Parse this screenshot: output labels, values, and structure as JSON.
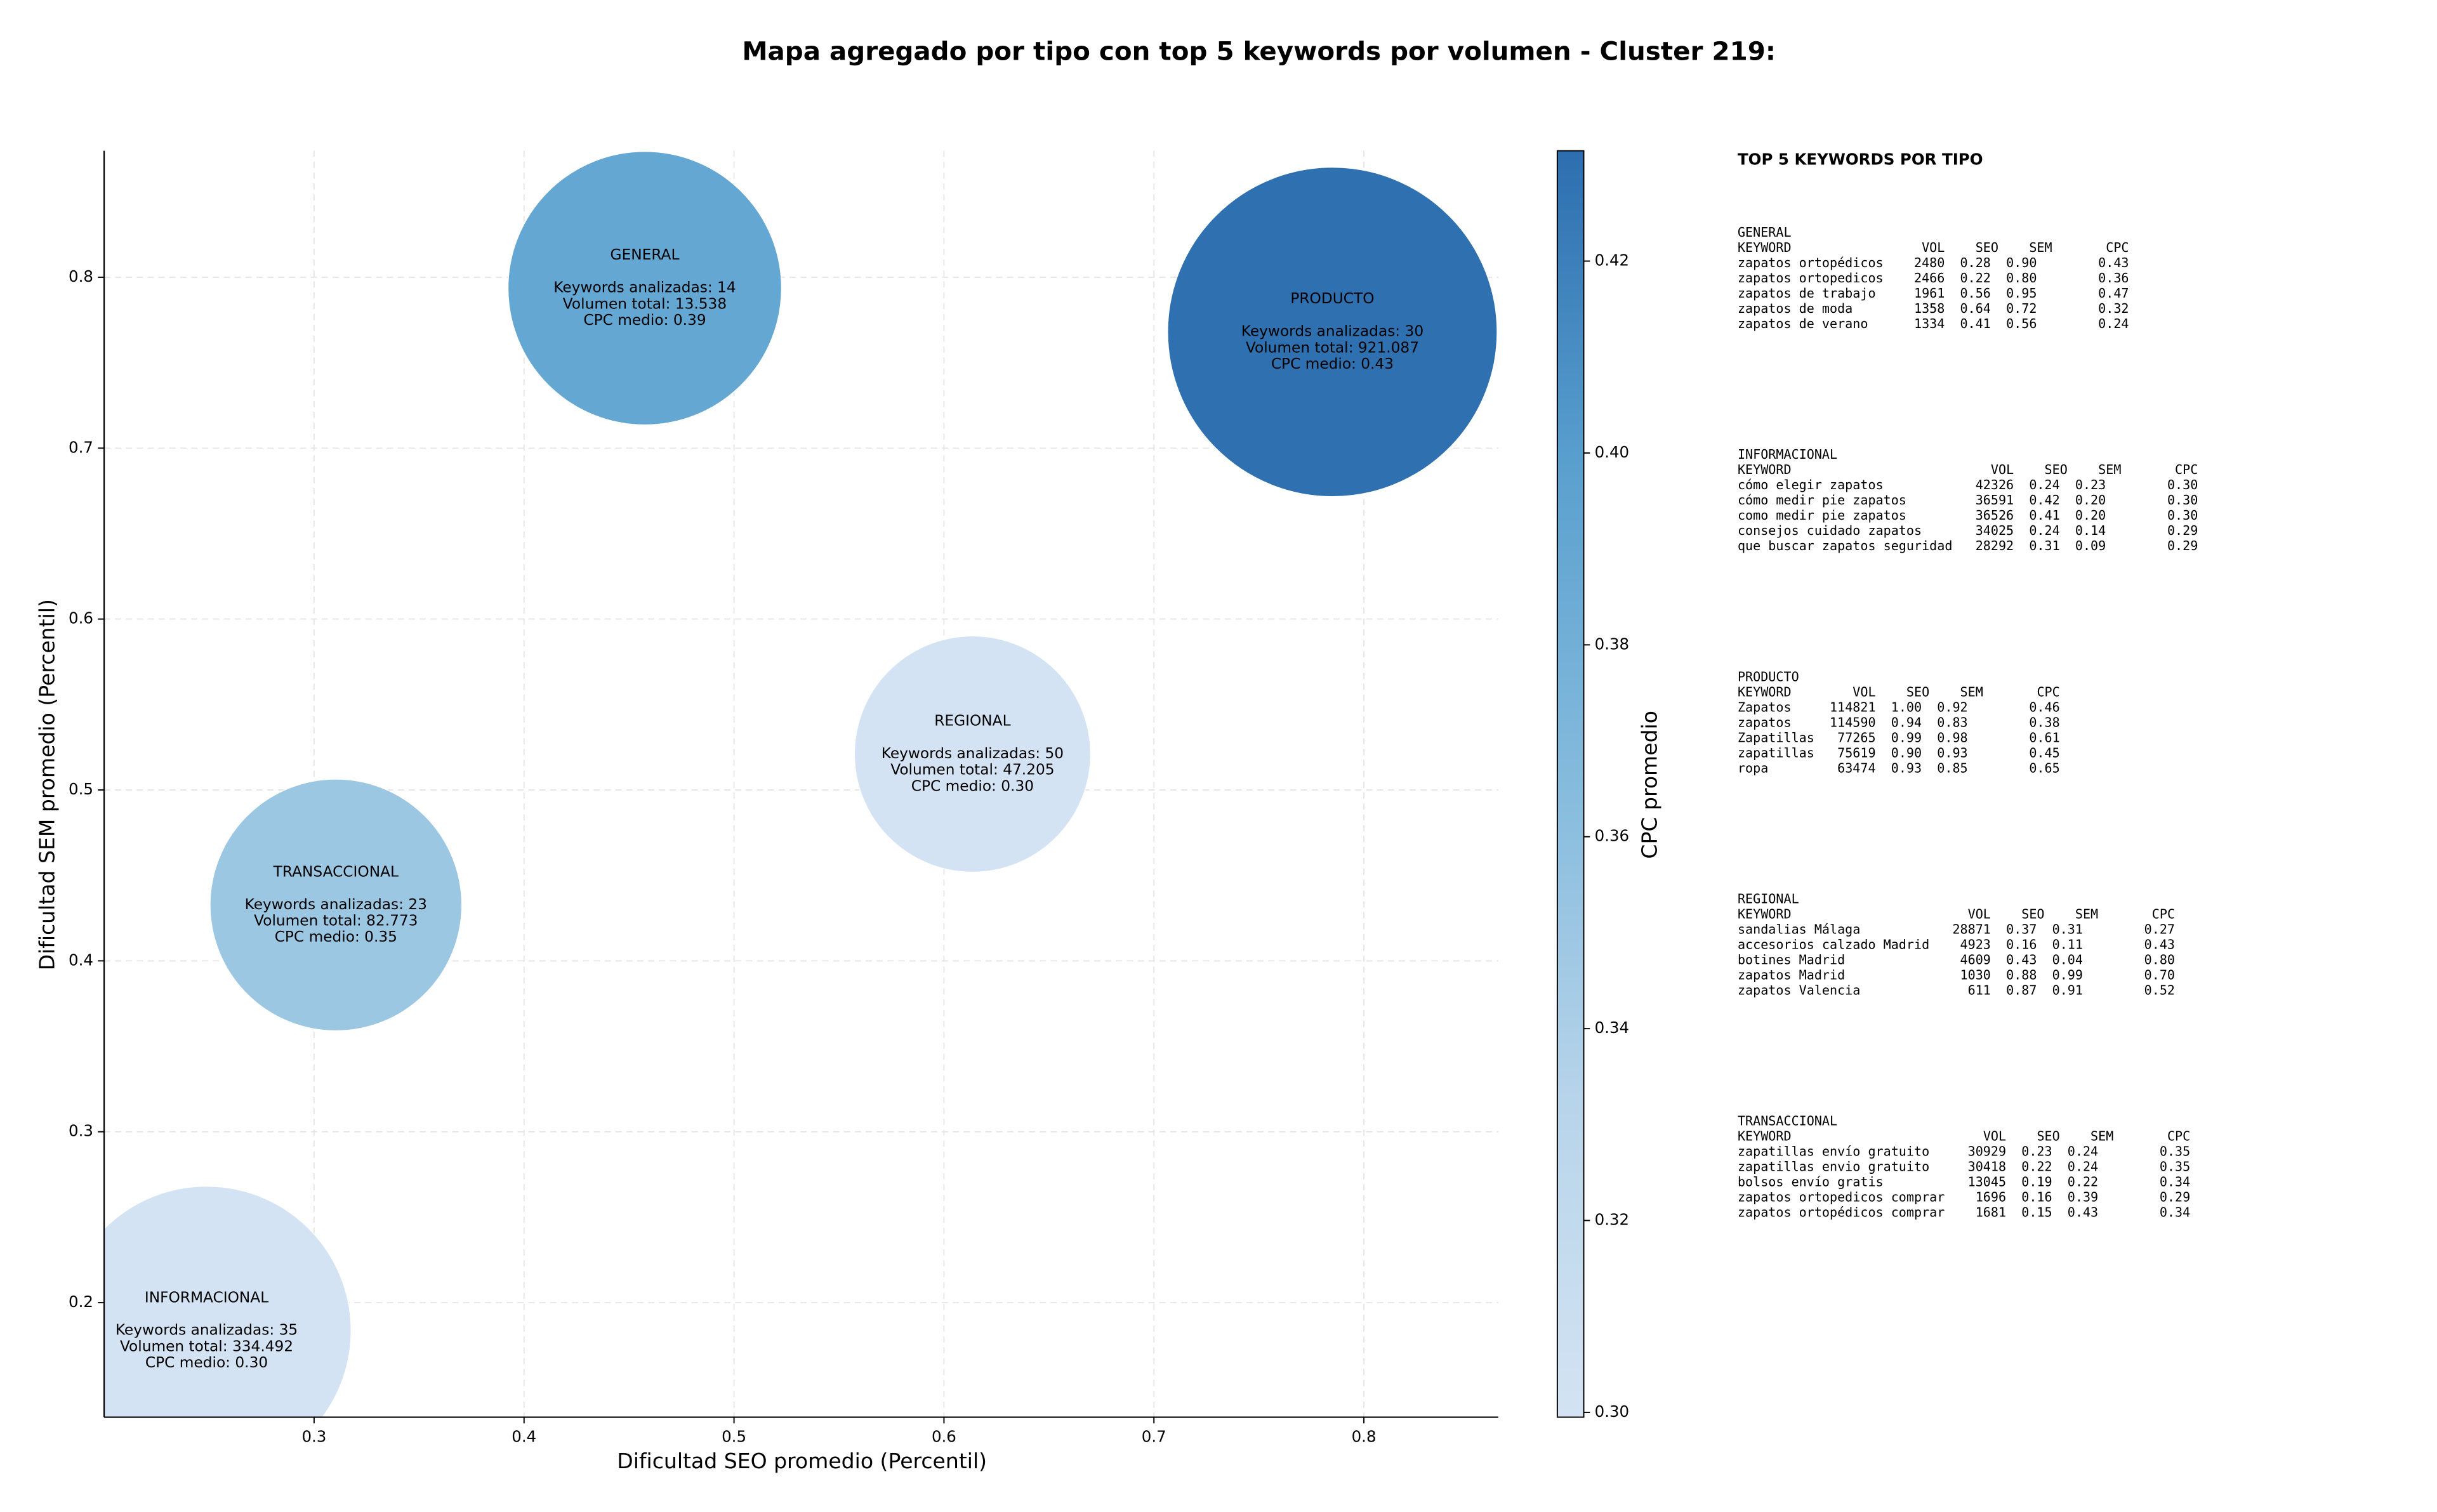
{
  "chart_data": {
    "type": "bubble",
    "title": "Mapa agregado por tipo con top 5 keywords por volumen - Cluster 219:",
    "x_label": "Dificultad SEO promedio (Percentil)",
    "y_label": "Dificultad SEM promedio (Percentil)",
    "colorbar_label": "CPC promedio",
    "xlim": [
      0.2,
      0.864
    ],
    "ylim": [
      0.133,
      0.874
    ],
    "xticks": [
      0.3,
      0.4,
      0.5,
      0.6,
      0.7,
      0.8
    ],
    "yticks": [
      0.2,
      0.3,
      0.4,
      0.5,
      0.6,
      0.7,
      0.8
    ],
    "clim": [
      0.2995,
      0.4315
    ],
    "cticks": [
      {
        "value": 0.3,
        "label": "0.30"
      },
      {
        "value": 0.32,
        "label": "0.32"
      },
      {
        "value": 0.34,
        "label": "0.34"
      },
      {
        "value": 0.36,
        "label": "0.36"
      },
      {
        "value": 0.38,
        "label": "0.38"
      },
      {
        "value": 0.4,
        "label": "0.40"
      },
      {
        "value": 0.42,
        "label": "0.42"
      }
    ],
    "colormap": [
      "#d3e3f3",
      "#b7d4ea",
      "#85bbdd",
      "#5aa0cf",
      "#2c6eaf"
    ],
    "grid": true,
    "points": [
      {
        "name": "GENERAL",
        "x": 0.4575,
        "y": 0.7936,
        "size": 7744,
        "cpc": 0.39,
        "lines": [
          "Keywords analizadas: 14",
          "Volumen total: 13.538",
          "CPC medio: 0.39"
        ]
      },
      {
        "name": "PRODUCTO",
        "x": 0.785,
        "y": 0.768,
        "size": 11236,
        "cpc": 0.43,
        "lines": [
          "Keywords analizadas: 30",
          "Volumen total: 921.087",
          "CPC medio: 0.43"
        ]
      },
      {
        "name": "REGIONAL",
        "x": 0.6136,
        "y": 0.521,
        "size": 5776,
        "cpc": 0.3,
        "lines": [
          "Keywords analizadas: 50",
          "Volumen total: 47.205",
          "CPC medio: 0.30"
        ]
      },
      {
        "name": "TRANSACCIONAL",
        "x": 0.3104,
        "y": 0.4327,
        "size": 6561,
        "cpc": 0.35,
        "lines": [
          "Keywords analizadas: 23",
          "Volumen total: 82.773",
          "CPC medio: 0.35"
        ]
      },
      {
        "name": "INFORMACIONAL",
        "x": 0.2488,
        "y": 0.1836,
        "size": 8649,
        "cpc": 0.3,
        "lines": [
          "Keywords analizadas: 35",
          "Volumen total: 334.492",
          "CPC medio: 0.30"
        ]
      }
    ]
  },
  "panel": {
    "title": "TOP 5 KEYWORDS POR TIPO",
    "blocks": [
      {
        "name": "GENERAL",
        "header": [
          "KEYWORD",
          "VOL",
          "SEO",
          "SEM",
          "CPC"
        ],
        "rows": [
          [
            "zapatos ortopédicos",
            "2480",
            "0.28",
            "0.90",
            "0.43"
          ],
          [
            "zapatos ortopedicos",
            "2466",
            "0.22",
            "0.80",
            "0.36"
          ],
          [
            "zapatos de trabajo",
            "1961",
            "0.56",
            "0.95",
            "0.47"
          ],
          [
            "zapatos de moda",
            "1358",
            "0.64",
            "0.72",
            "0.32"
          ],
          [
            "zapatos de verano",
            "1334",
            "0.41",
            "0.56",
            "0.24"
          ]
        ]
      },
      {
        "name": "INFORMACIONAL",
        "header": [
          "KEYWORD",
          "VOL",
          "SEO",
          "SEM",
          "CPC"
        ],
        "rows": [
          [
            "cómo elegir zapatos",
            "42326",
            "0.24",
            "0.23",
            "0.30"
          ],
          [
            "cómo medir pie zapatos",
            "36591",
            "0.42",
            "0.20",
            "0.30"
          ],
          [
            "como medir pie zapatos",
            "36526",
            "0.41",
            "0.20",
            "0.30"
          ],
          [
            "consejos cuidado zapatos",
            "34025",
            "0.24",
            "0.14",
            "0.29"
          ],
          [
            "que buscar zapatos seguridad",
            "28292",
            "0.31",
            "0.09",
            "0.29"
          ]
        ]
      },
      {
        "name": "PRODUCTO",
        "header": [
          "KEYWORD",
          "VOL",
          "SEO",
          "SEM",
          "CPC"
        ],
        "rows": [
          [
            "Zapatos",
            "114821",
            "1.00",
            "0.92",
            "0.46"
          ],
          [
            "zapatos",
            "114590",
            "0.94",
            "0.83",
            "0.38"
          ],
          [
            "Zapatillas",
            "77265",
            "0.99",
            "0.98",
            "0.61"
          ],
          [
            "zapatillas",
            "75619",
            "0.90",
            "0.93",
            "0.45"
          ],
          [
            "ropa",
            "63474",
            "0.93",
            "0.85",
            "0.65"
          ]
        ]
      },
      {
        "name": "REGIONAL",
        "header": [
          "KEYWORD",
          "VOL",
          "SEO",
          "SEM",
          "CPC"
        ],
        "rows": [
          [
            "sandalias Málaga",
            "28871",
            "0.37",
            "0.31",
            "0.27"
          ],
          [
            "accesorios calzado Madrid",
            "4923",
            "0.16",
            "0.11",
            "0.43"
          ],
          [
            "botines Madrid",
            "4609",
            "0.43",
            "0.04",
            "0.80"
          ],
          [
            "zapatos Madrid",
            "1030",
            "0.88",
            "0.99",
            "0.70"
          ],
          [
            "zapatos Valencia",
            "611",
            "0.87",
            "0.91",
            "0.52"
          ]
        ]
      },
      {
        "name": "TRANSACCIONAL",
        "header": [
          "KEYWORD",
          "VOL",
          "SEO",
          "SEM",
          "CPC"
        ],
        "rows": [
          [
            "zapatillas envío gratuito",
            "30929",
            "0.23",
            "0.24",
            "0.35"
          ],
          [
            "zapatillas envio gratuito",
            "30418",
            "0.22",
            "0.24",
            "0.35"
          ],
          [
            "bolsos envío gratis",
            "13045",
            "0.19",
            "0.22",
            "0.34"
          ],
          [
            "zapatos ortopedicos comprar",
            "1696",
            "0.16",
            "0.39",
            "0.29"
          ],
          [
            "zapatos ortopédicos comprar",
            "1681",
            "0.15",
            "0.43",
            "0.34"
          ]
        ]
      }
    ]
  }
}
